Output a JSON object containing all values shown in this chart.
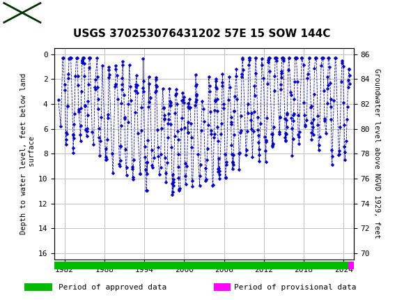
{
  "title": "USGS 370253076431202 57E 15 SOW 144C",
  "ylabel_left": "Depth to water level, feet below land\n surface",
  "ylabel_right": "Groundwater level above NGVD 1929, feet",
  "xlim": [
    1980.5,
    2025.5
  ],
  "ylim_left": [
    16.5,
    -0.5
  ],
  "ylim_right": [
    69.5,
    86.5
  ],
  "xticks": [
    1982,
    1988,
    1994,
    2000,
    2006,
    2012,
    2018,
    2024
  ],
  "yticks_left": [
    0,
    2,
    4,
    6,
    8,
    10,
    12,
    14,
    16
  ],
  "yticks_right": [
    86,
    84,
    82,
    80,
    78,
    76,
    74,
    72,
    70
  ],
  "header_color": "#006633",
  "data_color": "#0000cc",
  "approved_color": "#00bb00",
  "provisional_color": "#ff00ff",
  "legend_approved": "Period of approved data",
  "legend_provisional": "Period of provisional data",
  "background_color": "#ffffff",
  "plot_bg": "#ffffff",
  "grid_color": "#c0c0c0",
  "figwidth": 5.8,
  "figheight": 4.3,
  "dpi": 100
}
